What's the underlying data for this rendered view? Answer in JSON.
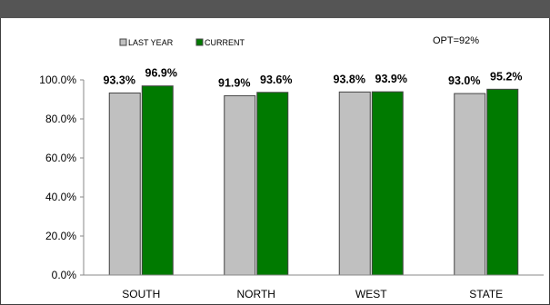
{
  "chart_data": {
    "type": "bar",
    "categories": [
      "SOUTH",
      "NORTH",
      "WEST",
      "STATE"
    ],
    "series": [
      {
        "name": "LAST YEAR",
        "values": [
          93.3,
          91.9,
          93.8,
          93.0
        ],
        "labels": [
          "93.3%",
          "91.9%",
          "93.8%",
          "93.0%"
        ],
        "color": "#c0c0c0"
      },
      {
        "name": "CURRENT",
        "values": [
          96.9,
          93.6,
          93.9,
          95.2
        ],
        "labels": [
          "96.9%",
          "93.6%",
          "93.9%",
          "95.2%"
        ],
        "color": "#007a00"
      }
    ],
    "ylim": [
      0,
      100
    ],
    "yticks": [
      0,
      20,
      40,
      60,
      80,
      100
    ],
    "ytick_labels": [
      "0.0%",
      "20.0%",
      "40.0%",
      "60.0%",
      "80.0%",
      "100.0%"
    ],
    "annotation": "OPT=92%",
    "legend_position": "top-left",
    "grid": false,
    "bar_stroke": "#444444",
    "header_color": "#555555"
  }
}
